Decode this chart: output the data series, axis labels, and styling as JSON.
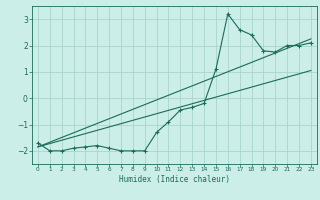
{
  "xlabel": "Humidex (Indice chaleur)",
  "bg_color": "#cceee8",
  "grid_color": "#aad4cc",
  "line_color": "#1a6b5a",
  "x_data": [
    0,
    1,
    2,
    3,
    4,
    5,
    6,
    7,
    8,
    9,
    10,
    11,
    12,
    13,
    14,
    15,
    16,
    17,
    18,
    19,
    20,
    21,
    22,
    23
  ],
  "y_data": [
    -1.7,
    -2.0,
    -2.0,
    -1.9,
    -1.85,
    -1.8,
    -1.9,
    -2.0,
    -2.0,
    -2.0,
    -1.3,
    -0.9,
    -0.45,
    -0.35,
    -0.2,
    1.1,
    3.2,
    2.6,
    2.4,
    1.8,
    1.75,
    2.0,
    2.0,
    2.1
  ],
  "trend1_x": [
    0,
    23
  ],
  "trend1_y": [
    -1.85,
    1.05
  ],
  "trend2_x": [
    0,
    23
  ],
  "trend2_y": [
    -1.85,
    2.25
  ],
  "ylim": [
    -2.5,
    3.5
  ],
  "xlim": [
    -0.5,
    23.5
  ],
  "yticks": [
    -2,
    -1,
    0,
    1,
    2,
    3
  ],
  "xticks": [
    0,
    1,
    2,
    3,
    4,
    5,
    6,
    7,
    8,
    9,
    10,
    11,
    12,
    13,
    14,
    15,
    16,
    17,
    18,
    19,
    20,
    21,
    22,
    23
  ]
}
